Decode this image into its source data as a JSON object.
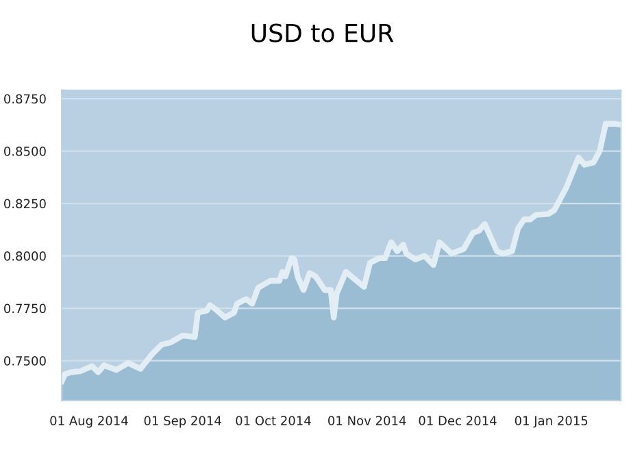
{
  "chart_data": {
    "type": "area",
    "title": "USD to EUR",
    "x": [
      "2014-07-23",
      "2014-07-24",
      "2014-07-26",
      "2014-07-29",
      "2014-08-02",
      "2014-08-04",
      "2014-08-06",
      "2014-08-10",
      "2014-08-14",
      "2014-08-18",
      "2014-08-22",
      "2014-08-25",
      "2014-08-28",
      "2014-09-01",
      "2014-09-05",
      "2014-09-06",
      "2014-09-09",
      "2014-09-10",
      "2014-09-12",
      "2014-09-15",
      "2014-09-18",
      "2014-09-19",
      "2014-09-22",
      "2014-09-24",
      "2014-09-26",
      "2014-09-30",
      "2014-10-03",
      "2014-10-04",
      "2014-10-05",
      "2014-10-07",
      "2014-10-08",
      "2014-10-09",
      "2014-10-11",
      "2014-10-13",
      "2014-10-15",
      "2014-10-18",
      "2014-10-20",
      "2014-10-21",
      "2014-10-22",
      "2014-10-25",
      "2014-10-31",
      "2014-11-02",
      "2014-11-05",
      "2014-11-07",
      "2014-11-09",
      "2014-11-11",
      "2014-11-13",
      "2014-11-14",
      "2014-11-17",
      "2014-11-20",
      "2014-11-23",
      "2014-11-25",
      "2014-11-29",
      "2014-12-03",
      "2014-12-06",
      "2014-12-08",
      "2014-12-10",
      "2014-12-12",
      "2014-12-14",
      "2014-12-16",
      "2014-12-19",
      "2014-12-21",
      "2014-12-23",
      "2014-12-25",
      "2014-12-27",
      "2014-12-31",
      "2015-01-02",
      "2015-01-06",
      "2015-01-10",
      "2015-01-12",
      "2015-01-15",
      "2015-01-17",
      "2015-01-19",
      "2015-01-22",
      "2015-01-24"
    ],
    "series": [
      {
        "color": "#e3edf4",
        "values": [
          0.7402,
          0.7435,
          0.7445,
          0.7449,
          0.7474,
          0.7445,
          0.7478,
          0.7456,
          0.7489,
          0.7461,
          0.7533,
          0.7576,
          0.7587,
          0.762,
          0.7613,
          0.7729,
          0.7739,
          0.7765,
          0.7744,
          0.7706,
          0.7729,
          0.7772,
          0.7794,
          0.7772,
          0.7848,
          0.7881,
          0.7881,
          0.7924,
          0.7902,
          0.7989,
          0.7983,
          0.7902,
          0.7837,
          0.7918,
          0.7902,
          0.7837,
          0.7837,
          0.7706,
          0.7822,
          0.7924,
          0.7852,
          0.7967,
          0.7989,
          0.7989,
          0.8065,
          0.8022,
          0.8054,
          0.8011,
          0.7983,
          0.8,
          0.7957,
          0.8065,
          0.8011,
          0.8033,
          0.8109,
          0.812,
          0.8152,
          0.8087,
          0.8022,
          0.8011,
          0.8022,
          0.8131,
          0.8174,
          0.8174,
          0.8196,
          0.82,
          0.8218,
          0.8327,
          0.8469,
          0.8435,
          0.8446,
          0.85,
          0.863,
          0.863,
          0.8626
        ]
      }
    ],
    "xlim": [
      "2014-07-23",
      "2015-01-24"
    ],
    "xticks": [
      {
        "value": "2014-08-01",
        "label": "01 Aug 2014"
      },
      {
        "value": "2014-09-01",
        "label": "01 Sep 2014"
      },
      {
        "value": "2014-10-01",
        "label": "01 Oct 2014"
      },
      {
        "value": "2014-11-01",
        "label": "01 Nov 2014"
      },
      {
        "value": "2014-12-01",
        "label": "01 Dec 2014"
      },
      {
        "value": "2015-01-01",
        "label": "01 Jan 2015"
      }
    ],
    "ylim": [
      0.731,
      0.879
    ],
    "yticks": [
      {
        "value": 0.75,
        "label": "0.7500"
      },
      {
        "value": 0.775,
        "label": "0.7750"
      },
      {
        "value": 0.8,
        "label": "0.8000"
      },
      {
        "value": 0.825,
        "label": "0.8250"
      },
      {
        "value": 0.85,
        "label": "0.8500"
      },
      {
        "value": 0.875,
        "label": "0.8750"
      }
    ],
    "grid": "y"
  }
}
